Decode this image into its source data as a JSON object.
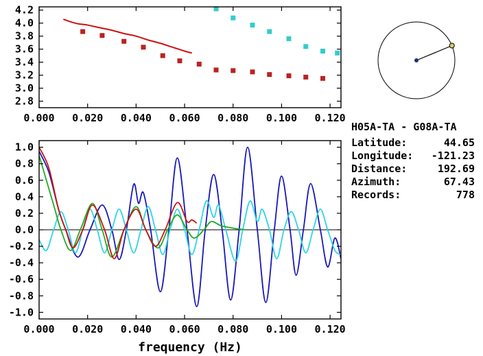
{
  "station": {
    "pair": "H05A-TA - G08A-TA",
    "fields": [
      {
        "label": "Latitude:",
        "value": "44.65"
      },
      {
        "label": "Longitude:",
        "value": "-121.23"
      },
      {
        "label": "Distance:",
        "value": "192.69"
      },
      {
        "label": "Azimuth:",
        "value": "67.43"
      },
      {
        "label": "Records:",
        "value": "778"
      }
    ]
  },
  "compass": {
    "azimuth_deg": 67.43,
    "circle_color": "#000000",
    "line_color": "#000000",
    "center_dot_color": "#1b2f7a",
    "edge_dot_color": "#d9c96a"
  },
  "chart_data": [
    {
      "type": "scatter",
      "title": "",
      "xlabel": "",
      "ylabel": "",
      "xlim": [
        0,
        0.1245
      ],
      "ylim": [
        2.7,
        4.25
      ],
      "xticks": {
        "values": [
          0.0,
          0.02,
          0.04,
          0.06,
          0.08,
          0.1,
          0.12
        ],
        "labels": [
          "0.000",
          "0.020",
          "0.040",
          "0.060",
          "0.080",
          "0.100",
          "0.120"
        ]
      },
      "yticks": {
        "values": [
          2.8,
          3.0,
          3.2,
          3.4,
          3.6,
          3.8,
          4.0,
          4.2
        ],
        "labels": [
          "2.8",
          "3.0",
          "3.2",
          "3.4",
          "3.6",
          "3.8",
          "4.0",
          "4.2"
        ]
      },
      "zero_line": false,
      "series": [
        {
          "name": "reference-phase-velocity-curve",
          "type": "line",
          "color": "#cc1111",
          "width": 2,
          "points": [
            [
              0.01,
              4.06
            ],
            [
              0.013,
              4.02
            ],
            [
              0.016,
              3.99
            ],
            [
              0.02,
              3.97
            ],
            [
              0.025,
              3.93
            ],
            [
              0.03,
              3.89
            ],
            [
              0.035,
              3.84
            ],
            [
              0.04,
              3.8
            ],
            [
              0.045,
              3.74
            ],
            [
              0.05,
              3.69
            ],
            [
              0.055,
              3.63
            ],
            [
              0.06,
              3.57
            ],
            [
              0.063,
              3.54
            ]
          ]
        },
        {
          "name": "measured-dispersion-points",
          "type": "scatter",
          "marker": "square",
          "color": "#bb2222",
          "points": [
            [
              0.018,
              3.87
            ],
            [
              0.026,
              3.81
            ],
            [
              0.035,
              3.72
            ],
            [
              0.043,
              3.63
            ],
            [
              0.051,
              3.5
            ],
            [
              0.058,
              3.42
            ],
            [
              0.066,
              3.37
            ],
            [
              0.073,
              3.28
            ],
            [
              0.08,
              3.27
            ],
            [
              0.088,
              3.25
            ],
            [
              0.095,
              3.21
            ],
            [
              0.103,
              3.19
            ],
            [
              0.11,
              3.17
            ],
            [
              0.117,
              3.15
            ]
          ]
        },
        {
          "name": "alternate-branch-points",
          "type": "scatter",
          "marker": "square",
          "color": "#33cccc",
          "points": [
            [
              0.073,
              4.22
            ],
            [
              0.08,
              4.08
            ],
            [
              0.088,
              3.97
            ],
            [
              0.095,
              3.87
            ],
            [
              0.103,
              3.76
            ],
            [
              0.11,
              3.64
            ],
            [
              0.117,
              3.57
            ],
            [
              0.123,
              3.54
            ]
          ]
        }
      ]
    },
    {
      "type": "line",
      "title": "",
      "xlabel": "frequency (Hz)",
      "ylabel": "",
      "xlim": [
        0,
        0.1245
      ],
      "ylim": [
        -1.08,
        1.08
      ],
      "xticks": {
        "values": [
          0.0,
          0.02,
          0.04,
          0.06,
          0.08,
          0.1,
          0.12
        ],
        "labels": [
          "0.000",
          "0.020",
          "0.040",
          "0.060",
          "0.080",
          "0.100",
          "0.120"
        ]
      },
      "yticks": {
        "values": [
          -1.0,
          -0.8,
          -0.6,
          -0.4,
          -0.2,
          0.0,
          0.2,
          0.4,
          0.6,
          0.8,
          1.0
        ],
        "labels": [
          "-1.0",
          "-0.8",
          "-0.6",
          "-0.4",
          "-0.2",
          "0.0",
          "0.2",
          "0.4",
          "0.6",
          "0.8",
          "1.0"
        ]
      },
      "zero_line": true,
      "series": [
        {
          "name": "broadband-real-spectrum",
          "type": "line",
          "color": "#1818b8",
          "width": 1.8,
          "points": [
            [
              0.0,
              0.95
            ],
            [
              0.004,
              0.7
            ],
            [
              0.008,
              0.25
            ],
            [
              0.011,
              0.0
            ],
            [
              0.016,
              -0.33
            ],
            [
              0.021,
              0.0
            ],
            [
              0.026,
              0.3
            ],
            [
              0.03,
              0.0
            ],
            [
              0.033,
              -0.36
            ],
            [
              0.036,
              0.0
            ],
            [
              0.039,
              0.55
            ],
            [
              0.041,
              0.32
            ],
            [
              0.043,
              0.45
            ],
            [
              0.046,
              0.0
            ],
            [
              0.05,
              -0.75
            ],
            [
              0.0535,
              0.0
            ],
            [
              0.057,
              0.87
            ],
            [
              0.061,
              0.0
            ],
            [
              0.065,
              -0.93
            ],
            [
              0.0685,
              0.0
            ],
            [
              0.072,
              0.67
            ],
            [
              0.0755,
              0.0
            ],
            [
              0.079,
              -0.85
            ],
            [
              0.0825,
              0.0
            ],
            [
              0.086,
              1.0
            ],
            [
              0.09,
              0.0
            ],
            [
              0.0935,
              -0.88
            ],
            [
              0.097,
              0.0
            ],
            [
              0.1,
              0.65
            ],
            [
              0.1035,
              0.0
            ],
            [
              0.106,
              -0.55
            ],
            [
              0.109,
              0.0
            ],
            [
              0.112,
              0.56
            ],
            [
              0.116,
              0.0
            ],
            [
              0.119,
              -0.45
            ],
            [
              0.122,
              -0.1
            ],
            [
              0.1245,
              -0.35
            ]
          ]
        },
        {
          "name": "smoothed-spectrum",
          "type": "line",
          "color": "#2fd4e4",
          "width": 1.8,
          "points": [
            [
              0.0,
              -0.12
            ],
            [
              0.003,
              -0.25
            ],
            [
              0.006,
              0.0
            ],
            [
              0.009,
              0.22
            ],
            [
              0.012,
              0.0
            ],
            [
              0.015,
              -0.28
            ],
            [
              0.018,
              0.0
            ],
            [
              0.021,
              0.25
            ],
            [
              0.024,
              0.0
            ],
            [
              0.027,
              -0.28
            ],
            [
              0.03,
              0.0
            ],
            [
              0.033,
              0.25
            ],
            [
              0.036,
              0.0
            ],
            [
              0.039,
              -0.28
            ],
            [
              0.042,
              0.0
            ],
            [
              0.045,
              0.28
            ],
            [
              0.048,
              0.0
            ],
            [
              0.051,
              -0.3
            ],
            [
              0.054,
              0.0
            ],
            [
              0.057,
              0.25
            ],
            [
              0.06,
              0.0
            ],
            [
              0.063,
              -0.3
            ],
            [
              0.066,
              0.0
            ],
            [
              0.069,
              0.35
            ],
            [
              0.072,
              0.15
            ],
            [
              0.074,
              0.3
            ],
            [
              0.077,
              0.0
            ],
            [
              0.081,
              -0.38
            ],
            [
              0.084,
              0.0
            ],
            [
              0.087,
              0.35
            ],
            [
              0.09,
              0.1
            ],
            [
              0.092,
              0.25
            ],
            [
              0.095,
              0.0
            ],
            [
              0.098,
              -0.35
            ],
            [
              0.101,
              0.0
            ],
            [
              0.104,
              0.22
            ],
            [
              0.107,
              0.0
            ],
            [
              0.11,
              -0.28
            ],
            [
              0.113,
              0.0
            ],
            [
              0.116,
              0.25
            ],
            [
              0.119,
              0.0
            ],
            [
              0.122,
              -0.25
            ],
            [
              0.1245,
              -0.3
            ]
          ]
        },
        {
          "name": "model-bessel-green",
          "type": "line",
          "color": "#22aa22",
          "width": 1.8,
          "points": [
            [
              0.0,
              0.9
            ],
            [
              0.006,
              0.3
            ],
            [
              0.009,
              0.0
            ],
            [
              0.013,
              -0.25
            ],
            [
              0.017,
              0.0
            ],
            [
              0.022,
              0.32
            ],
            [
              0.026,
              0.0
            ],
            [
              0.03,
              -0.33
            ],
            [
              0.035,
              0.0
            ],
            [
              0.04,
              0.28
            ],
            [
              0.044,
              0.0
            ],
            [
              0.049,
              -0.22
            ],
            [
              0.053,
              0.0
            ],
            [
              0.057,
              0.18
            ],
            [
              0.061,
              0.0
            ],
            [
              0.064,
              -0.1
            ],
            [
              0.068,
              0.0
            ],
            [
              0.071,
              0.1
            ],
            [
              0.075,
              0.05
            ],
            [
              0.08,
              0.02
            ],
            [
              0.085,
              0.0
            ]
          ]
        },
        {
          "name": "model-bessel-red",
          "type": "line",
          "color": "#cc1111",
          "width": 1.8,
          "points": [
            [
              0.0,
              1.0
            ],
            [
              0.004,
              0.75
            ],
            [
              0.008,
              0.25
            ],
            [
              0.011,
              0.0
            ],
            [
              0.014,
              -0.22
            ],
            [
              0.018,
              0.0
            ],
            [
              0.022,
              0.3
            ],
            [
              0.027,
              0.0
            ],
            [
              0.031,
              -0.35
            ],
            [
              0.035,
              0.0
            ],
            [
              0.04,
              0.25
            ],
            [
              0.044,
              0.0
            ],
            [
              0.048,
              -0.2
            ],
            [
              0.052,
              0.0
            ],
            [
              0.057,
              0.33
            ],
            [
              0.061,
              0.1
            ],
            [
              0.063,
              0.12
            ],
            [
              0.065,
              0.08
            ]
          ]
        }
      ]
    }
  ]
}
